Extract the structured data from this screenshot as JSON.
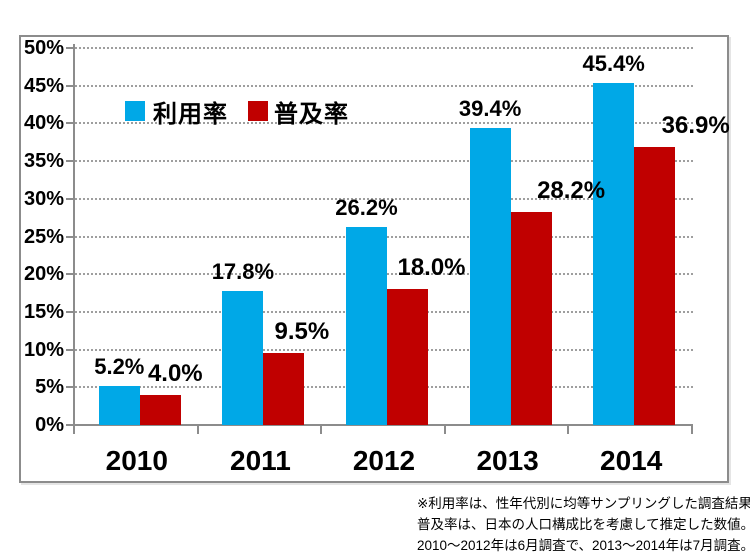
{
  "chart_data": {
    "type": "bar",
    "title": "",
    "xlabel": "",
    "ylabel": "",
    "categories": [
      "2010",
      "2011",
      "2012",
      "2013",
      "2014"
    ],
    "series": [
      {
        "name": "利用率",
        "color": "#00A8E7",
        "values": [
          5.2,
          17.8,
          26.2,
          39.4,
          45.4
        ],
        "data_labels": [
          "5.2%",
          "17.8%",
          "26.2%",
          "39.4%",
          "45.4%"
        ]
      },
      {
        "name": "普及率",
        "color": "#C00000",
        "values": [
          4.0,
          9.5,
          18.0,
          28.2,
          36.9
        ],
        "data_labels": [
          "4.0%",
          "9.5%",
          "18.0%",
          "28.2%",
          "36.9%"
        ]
      }
    ],
    "ylim": [
      0,
      50
    ],
    "ytick_step": 5,
    "ytick_labels": [
      "0%",
      "5%",
      "10%",
      "15%",
      "20%",
      "25%",
      "30%",
      "35%",
      "40%",
      "45%",
      "50%"
    ],
    "grid": true,
    "gridline_style": "dotted",
    "legend_position": "top-left-inside",
    "axis_color": "#8c8c8c",
    "grid_color": "#9e9e9e"
  },
  "footnote": {
    "lines": [
      "※利用率は、性年代別に均等サンプリングした調査結果。",
      "普及率は、日本の人口構成比を考慮して推定した数値。",
      "2010～2012年は6月調査で、2013～2014年は7月調査。"
    ]
  }
}
